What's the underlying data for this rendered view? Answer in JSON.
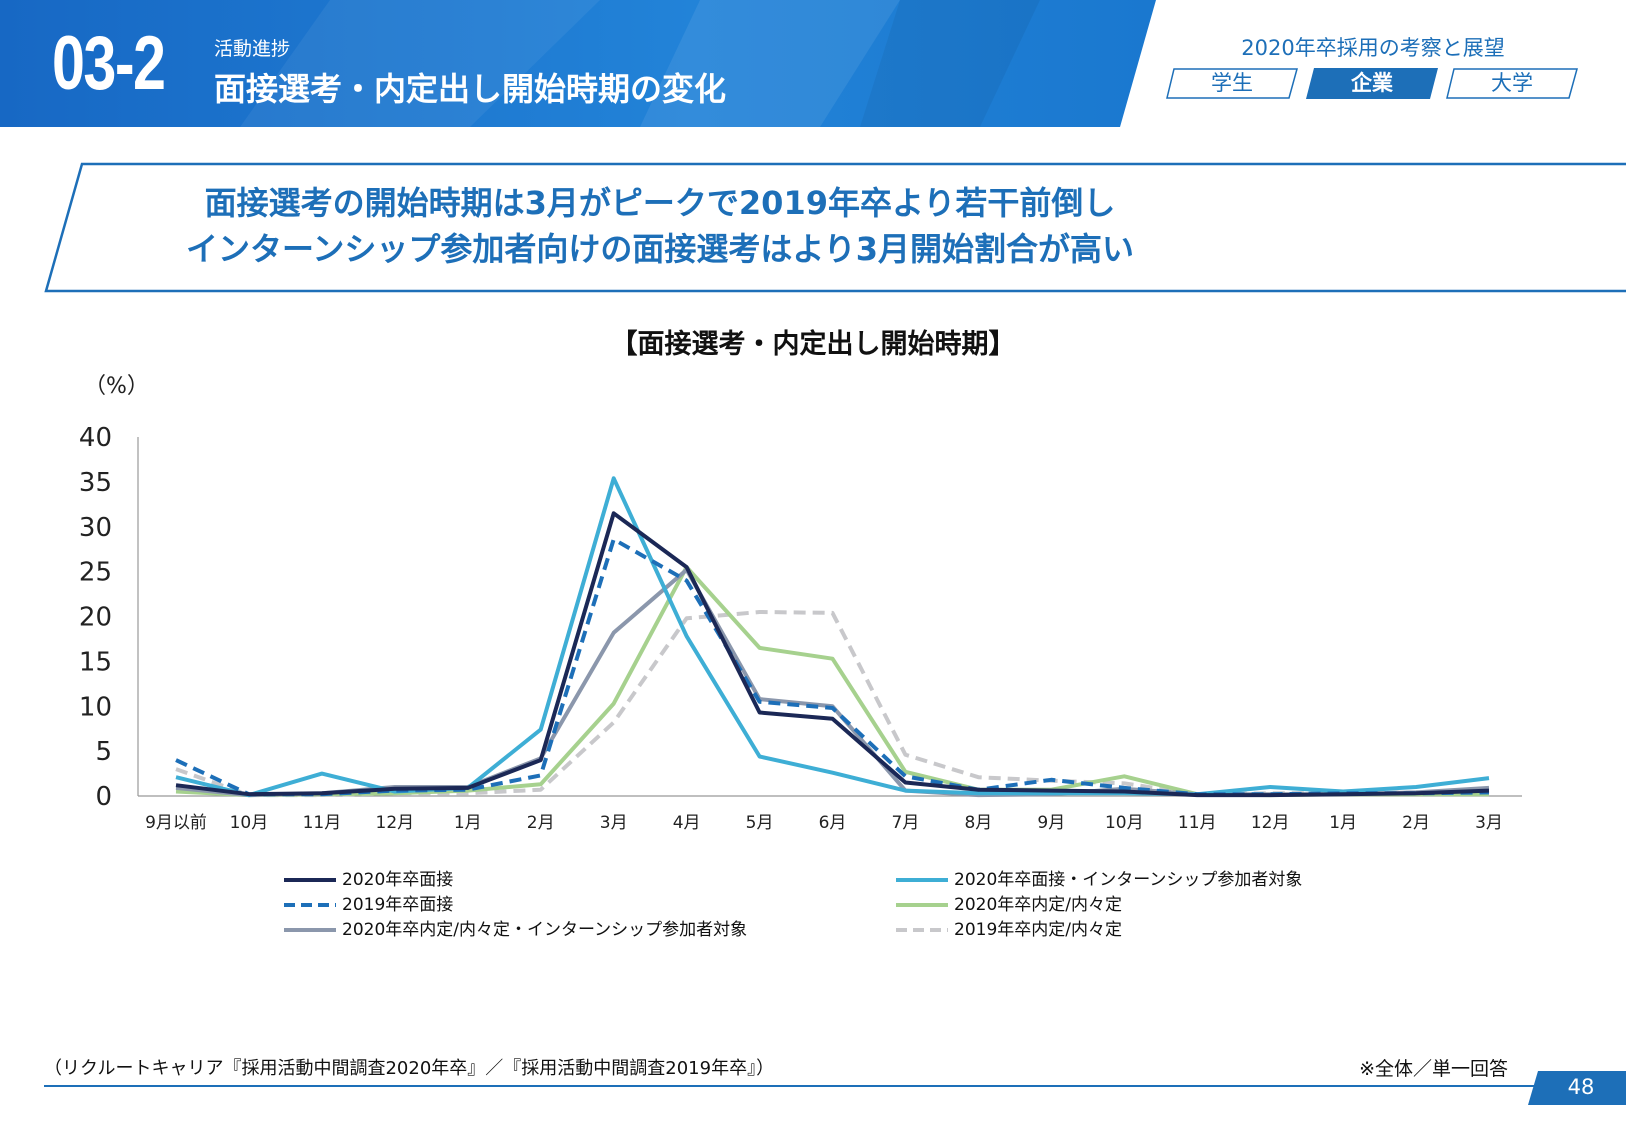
{
  "header": {
    "section_number": "03-2",
    "section_label": "活動進捗",
    "section_title": "面接選考・内定出し開始時期の変化",
    "top_right_title": "2020年卒採用の考察と展望",
    "tabs": [
      {
        "label": "学生",
        "active": false
      },
      {
        "label": "企業",
        "active": true
      },
      {
        "label": "大学",
        "active": false
      }
    ]
  },
  "headline": {
    "line1": "面接選考の開始時期は3月がピークで2019年卒より若干前倒し",
    "line2": "インターンシップ参加者向けの面接選考はより3月開始割合が高い"
  },
  "colors": {
    "brand_blue": "#1d6fb8",
    "header_blue": "#1a7fd4"
  },
  "chart_data": {
    "type": "line",
    "title": "【面接選考・内定出し開始時期】",
    "ylabel": "（%）",
    "xlabel": "",
    "ylim": [
      0,
      40
    ],
    "yticks": [
      "0",
      "5",
      "10",
      "15",
      "20",
      "25",
      "30",
      "35",
      "40"
    ],
    "categories": [
      "9月以前",
      "10月",
      "11月",
      "12月",
      "1月",
      "2月",
      "3月",
      "4月",
      "5月",
      "6月",
      "7月",
      "8月",
      "9月",
      "10月",
      "11月",
      "12月",
      "1月",
      "2月",
      "3月"
    ],
    "legend_position": "bottom",
    "series": [
      {
        "name": "2020年卒面接",
        "color": "#1b2856",
        "dash": "solid",
        "width": 4,
        "values": [
          1.2,
          0.2,
          0.3,
          0.8,
          0.9,
          4.0,
          31.5,
          25.5,
          9.3,
          8.6,
          1.5,
          0.7,
          0.6,
          0.5,
          0.1,
          0.1,
          0.2,
          0.3,
          0.6
        ]
      },
      {
        "name": "2020年卒面接・インターンシップ参加者対象",
        "color": "#3eaed5",
        "dash": "solid",
        "width": 4,
        "values": [
          2.1,
          0.1,
          2.5,
          0.5,
          0.9,
          7.4,
          35.4,
          17.8,
          4.4,
          2.6,
          0.6,
          0.3,
          0.3,
          0.3,
          0.2,
          1.0,
          0.5,
          1.0,
          2.0
        ]
      },
      {
        "name": "2019年卒面接",
        "color": "#1d6fb8",
        "dash": "dashed",
        "width": 4,
        "values": [
          4.0,
          0.2,
          0.2,
          0.6,
          0.7,
          2.3,
          28.6,
          24.0,
          10.5,
          9.8,
          2.2,
          0.7,
          1.8,
          0.9,
          0.2,
          0.2,
          0.3,
          0.3,
          0.4
        ]
      },
      {
        "name": "2020年卒内定/内々定",
        "color": "#a6d18e",
        "dash": "solid",
        "width": 4,
        "values": [
          0.5,
          0.1,
          0.2,
          0.3,
          0.6,
          1.3,
          10.3,
          25.5,
          16.5,
          15.3,
          2.7,
          0.7,
          0.7,
          2.2,
          0.2,
          0.1,
          0.2,
          0.2,
          0.2
        ]
      },
      {
        "name": "2020年卒内定/内々定・インターンシップ参加者対象",
        "color": "#8b97ac",
        "dash": "solid",
        "width": 4,
        "values": [
          0.9,
          0.1,
          0.3,
          1.0,
          1.0,
          4.2,
          18.2,
          25.2,
          10.8,
          10.0,
          0.6,
          0.1,
          0.2,
          0.8,
          0.2,
          0.2,
          0.2,
          0.4,
          0.9
        ]
      },
      {
        "name": "2019年卒内定/内々定",
        "color": "#c8c8cb",
        "dash": "dashed",
        "width": 4,
        "values": [
          3.0,
          0.1,
          0.1,
          0.3,
          0.3,
          0.7,
          8.2,
          19.8,
          20.5,
          20.4,
          4.6,
          2.1,
          1.7,
          1.4,
          0.2,
          0.3,
          0.3,
          0.4,
          0.5
        ]
      }
    ]
  },
  "footer": {
    "source": "（リクルートキャリア『採用活動中間調査2020年卒』／『採用活動中間調査2019年卒』）",
    "note": "※全体／単一回答",
    "page_number": "48"
  }
}
